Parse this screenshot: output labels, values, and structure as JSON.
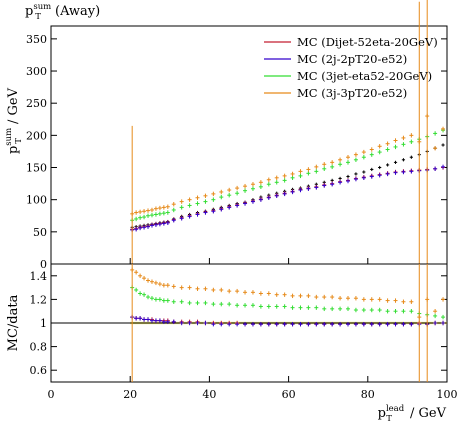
{
  "title": {
    "main": "p",
    "sup": "sum",
    "sub": "T",
    "suffix": " (Away)"
  },
  "chart_data": [
    {
      "type": "scatter",
      "panel": "main",
      "ylabel": {
        "main": "p",
        "sup": "sum",
        "sub": "T",
        "suffix": " / GeV"
      },
      "xlim": [
        0,
        100
      ],
      "ylim": [
        0,
        370
      ],
      "yticks": [
        0,
        50,
        100,
        150,
        200,
        250,
        300,
        350
      ],
      "x": [
        20.5,
        21.5,
        22.5,
        23.5,
        24.5,
        25.5,
        26.5,
        27.5,
        28.5,
        29.5,
        31,
        33,
        35,
        37,
        39,
        41,
        43,
        45,
        47,
        49,
        51,
        53,
        55,
        57,
        59,
        61,
        63,
        65,
        67,
        69,
        71,
        73,
        75,
        77,
        79,
        81,
        83,
        85,
        87,
        89,
        91,
        93,
        95,
        97,
        99
      ],
      "data": [
        57,
        58,
        59,
        60,
        61,
        62,
        63,
        64,
        65,
        66,
        70,
        74,
        77,
        80,
        82,
        85,
        88,
        91,
        94,
        96,
        100,
        104,
        107,
        110,
        113,
        116,
        118,
        121,
        124,
        127,
        130,
        133,
        136,
        140,
        143,
        147,
        150,
        154,
        158,
        162,
        166,
        170,
        175,
        180,
        185
      ],
      "series": [
        {
          "name": "MC (Dijet-52eta-20GeV)",
          "color": "#c41d30",
          "values": [
            54,
            55,
            57,
            58,
            59,
            61,
            62,
            63,
            64,
            65,
            69,
            72,
            75,
            78,
            81,
            83,
            86,
            89,
            92,
            95,
            98,
            101,
            104,
            107,
            110,
            113,
            116,
            118,
            120,
            123,
            125,
            128,
            130,
            133,
            135,
            137,
            139,
            141,
            143,
            144,
            145,
            146,
            147,
            148,
            150
          ]
        },
        {
          "name": "MC (2j-2pT20-e52)",
          "color": "#3300cc",
          "values": [
            53,
            54,
            56,
            57,
            58,
            60,
            61,
            62,
            63,
            64,
            68,
            71,
            74,
            77,
            80,
            82,
            85,
            88,
            91,
            94,
            97,
            100,
            103,
            106,
            109,
            112,
            115,
            117,
            119,
            122,
            124,
            127,
            129,
            132,
            134,
            136,
            138,
            140,
            142,
            143,
            144,
            145,
            146,
            148,
            151
          ]
        },
        {
          "name": "MC (3jet-eta52-20GeV)",
          "color": "#33dd33",
          "values": [
            68,
            70,
            72,
            73,
            75,
            76,
            77,
            78,
            79,
            80,
            84,
            88,
            91,
            94,
            97,
            100,
            104,
            107,
            110,
            114,
            117,
            120,
            124,
            127,
            130,
            134,
            137,
            141,
            144,
            148,
            151,
            155,
            158,
            162,
            166,
            170,
            174,
            178,
            182,
            186,
            190,
            194,
            198,
            203,
            208
          ]
        },
        {
          "name": "MC (3j-3pT20-e52)",
          "color": "#e68a1a",
          "values": [
            78,
            80,
            81,
            82,
            83,
            84,
            86,
            87,
            88,
            89,
            93,
            97,
            100,
            103,
            106,
            109,
            112,
            115,
            118,
            121,
            124,
            127,
            131,
            134,
            137,
            140,
            144,
            147,
            151,
            155,
            158,
            162,
            166,
            170,
            174,
            178,
            183,
            187,
            192,
            196,
            200,
            190,
            230,
            180,
            210
          ]
        }
      ]
    },
    {
      "type": "scatter",
      "panel": "ratio",
      "ylabel": "MC/data",
      "xlabel": {
        "main": "p",
        "sup": "lead",
        "sub": "T",
        "suffix": " / GeV"
      },
      "xlim": [
        0,
        100
      ],
      "ylim": [
        0.5,
        1.5
      ],
      "yticks": [
        0.6,
        0.8,
        1,
        1.2,
        1.4
      ],
      "yticklabels": [
        "0.6",
        "0.8",
        "1",
        "1.2",
        "1.4"
      ],
      "xticks": [
        0,
        20,
        40,
        60,
        80,
        100
      ],
      "xticklabels": [
        "0",
        "20",
        "40",
        "60",
        "80",
        "100"
      ],
      "series": [
        {
          "name": "MC (Dijet-52eta-20GeV)",
          "color": "#c41d30",
          "values": [
            1.05,
            1.04,
            1.04,
            1.03,
            1.03,
            1.03,
            1.02,
            1.02,
            1.02,
            1.02,
            1.01,
            1.01,
            1.01,
            1.01,
            1.0,
            1.0,
            1.0,
            1.0,
            1.0,
            0.99,
            0.99,
            0.99,
            0.99,
            0.99,
            0.99,
            0.99,
            0.99,
            0.99,
            0.99,
            0.99,
            0.99,
            0.99,
            0.99,
            0.99,
            0.99,
            0.99,
            0.99,
            0.99,
            0.99,
            0.99,
            0.99,
            1.0,
            0.99,
            1.0,
            1.0
          ]
        },
        {
          "name": "MC (2j-2pT20-e52)",
          "color": "#3300cc",
          "values": [
            1.05,
            1.04,
            1.04,
            1.03,
            1.03,
            1.02,
            1.02,
            1.02,
            1.01,
            1.01,
            1.01,
            1.0,
            1.0,
            1.0,
            1.0,
            0.99,
            0.99,
            0.99,
            0.99,
            0.99,
            0.99,
            0.99,
            0.99,
            0.99,
            0.99,
            0.99,
            0.99,
            0.99,
            0.99,
            0.99,
            0.99,
            0.99,
            0.99,
            0.99,
            0.99,
            0.99,
            0.99,
            0.99,
            0.99,
            0.99,
            0.99,
            0.99,
            0.99,
            1.0,
            1.0
          ]
        },
        {
          "name": "MC (3jet-eta52-20GeV)",
          "color": "#33dd33",
          "values": [
            1.3,
            1.28,
            1.25,
            1.24,
            1.22,
            1.21,
            1.2,
            1.2,
            1.19,
            1.19,
            1.18,
            1.18,
            1.17,
            1.17,
            1.17,
            1.16,
            1.16,
            1.16,
            1.15,
            1.15,
            1.15,
            1.14,
            1.14,
            1.14,
            1.14,
            1.13,
            1.13,
            1.13,
            1.13,
            1.12,
            1.12,
            1.12,
            1.12,
            1.11,
            1.11,
            1.11,
            1.11,
            1.1,
            1.1,
            1.1,
            1.1,
            1.08,
            1.07,
            1.06,
            1.05
          ]
        },
        {
          "name": "MC (3j-3pT20-e52)",
          "color": "#e68a1a",
          "values": [
            1.45,
            1.43,
            1.4,
            1.38,
            1.36,
            1.35,
            1.34,
            1.33,
            1.32,
            1.32,
            1.31,
            1.3,
            1.3,
            1.29,
            1.29,
            1.28,
            1.28,
            1.27,
            1.27,
            1.26,
            1.26,
            1.25,
            1.25,
            1.24,
            1.24,
            1.23,
            1.23,
            1.23,
            1.22,
            1.22,
            1.22,
            1.21,
            1.21,
            1.21,
            1.2,
            1.2,
            1.2,
            1.19,
            1.19,
            1.18,
            1.18,
            1.05,
            1.2,
            1.1,
            1.2
          ]
        }
      ]
    }
  ]
}
